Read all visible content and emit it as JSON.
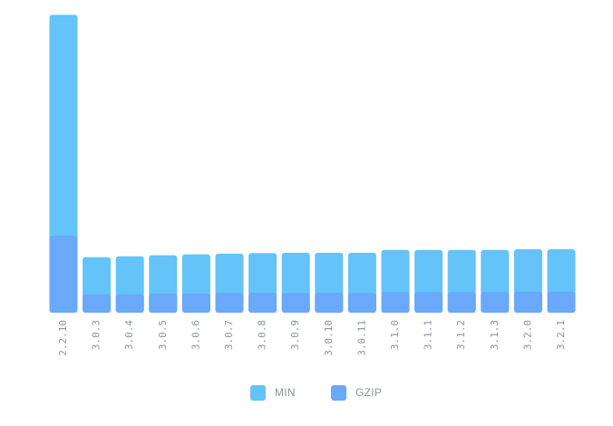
{
  "chart_data": {
    "type": "bar",
    "stacked": "overlay",
    "categories": [
      "2.2.10",
      "3.0.3",
      "3.0.4",
      "3.0.5",
      "3.0.6",
      "3.0.7",
      "3.0.8",
      "3.0.9",
      "3.0.10",
      "3.0.11",
      "3.1.0",
      "3.1.1",
      "3.1.2",
      "3.1.3",
      "3.2.0",
      "3.2.1"
    ],
    "series": [
      {
        "name": "MIN",
        "color": "#64c3f8",
        "values": [
          93.9,
          17.5,
          17.8,
          18.1,
          18.4,
          18.6,
          18.8,
          18.9,
          18.9,
          18.9,
          19.8,
          19.8,
          19.8,
          19.8,
          20.0,
          20.0
        ]
      },
      {
        "name": "GZIP",
        "color": "#6aa8f9",
        "values": [
          24.2,
          5.8,
          5.8,
          6.0,
          6.0,
          6.2,
          6.2,
          6.2,
          6.2,
          6.2,
          6.5,
          6.5,
          6.5,
          6.5,
          6.6,
          6.6
        ]
      }
    ],
    "ylim": [
      0,
      94
    ],
    "grid": false,
    "legend": "bottom-center",
    "title": "",
    "xlabel": "",
    "ylabel": ""
  }
}
